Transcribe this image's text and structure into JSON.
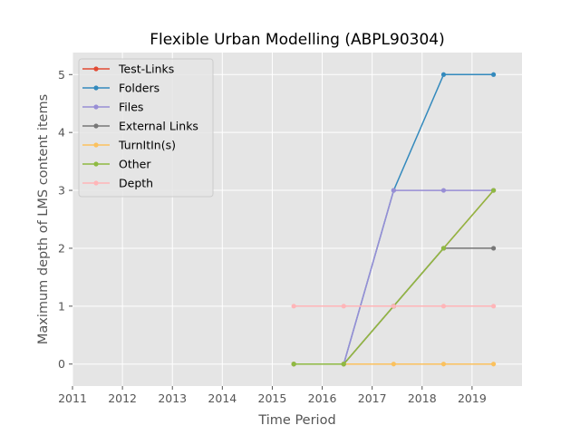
{
  "chart_data": {
    "type": "line",
    "title": "Flexible Urban Modelling (ABPL90304)",
    "xlabel": "Time Period",
    "ylabel": "Maximum depth of LMS content items",
    "xlim": [
      2011,
      2020
    ],
    "ylim": [
      -0.38,
      5.38
    ],
    "xticks": [
      2011,
      2012,
      2013,
      2014,
      2015,
      2016,
      2017,
      2018,
      2019
    ],
    "yticks": [
      0,
      1,
      2,
      3,
      4,
      5
    ],
    "grid": true,
    "legend_position": "upper-left",
    "x": [
      2015.43,
      2016.43,
      2017.43,
      2018.43,
      2019.43
    ],
    "series": [
      {
        "name": "Test-Links",
        "color": "#E24A33",
        "values": [
          0,
          0,
          1,
          2,
          3
        ]
      },
      {
        "name": "Folders",
        "color": "#348ABD",
        "values": [
          0,
          0,
          3,
          5,
          5
        ]
      },
      {
        "name": "Files",
        "color": "#988ED5",
        "values": [
          0,
          0,
          3,
          3,
          3
        ]
      },
      {
        "name": "External Links",
        "color": "#777777",
        "values": [
          0,
          0,
          1,
          2,
          2
        ]
      },
      {
        "name": "TurnItIn(s)",
        "color": "#FBC15E",
        "values": [
          0,
          0,
          0,
          0,
          0
        ]
      },
      {
        "name": "Other",
        "color": "#8EBA42",
        "values": [
          0,
          0,
          1,
          2,
          3
        ]
      },
      {
        "name": "Depth",
        "color": "#FFB5B8",
        "values": [
          1,
          1,
          1,
          1,
          1
        ]
      }
    ]
  }
}
